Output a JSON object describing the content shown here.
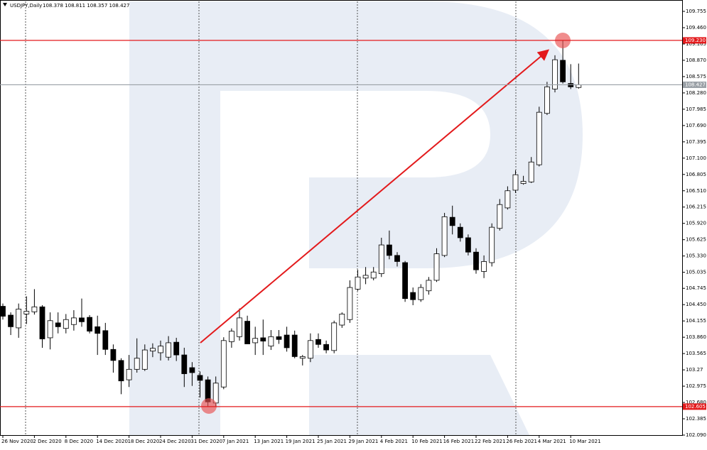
{
  "chart_data": {
    "type": "candlestick",
    "title": "USDJPY,Daily",
    "quote": "108.378 108.811 108.357 108.427",
    "categories": [
      "26 Nov 2020",
      null,
      null,
      null,
      "2 Dec 2020",
      null,
      null,
      null,
      "8 Dec 2020",
      null,
      null,
      null,
      "14 Dec 2020",
      null,
      null,
      null,
      "18 Dec 2020",
      null,
      null,
      null,
      "24 Dec 2020",
      null,
      null,
      null,
      "31 Dec 2020",
      null,
      null,
      null,
      "7 Jan 2021",
      null,
      null,
      null,
      "13 Jan 2021",
      null,
      null,
      null,
      "19 Jan 2021",
      null,
      null,
      null,
      "25 Jan 2021",
      null,
      null,
      null,
      "29 Jan 2021",
      null,
      null,
      null,
      "4 Feb 2021",
      null,
      null,
      null,
      "10 Feb 2021",
      null,
      null,
      null,
      "16 Feb 2021",
      null,
      null,
      null,
      "22 Feb 2021",
      null,
      null,
      null,
      "26 Feb 2021",
      null,
      null,
      null,
      "4 Mar 2021",
      null,
      null,
      null,
      "10 Mar 2021",
      null
    ],
    "open": [
      104.42,
      104.26,
      104.03,
      104.28,
      104.32,
      104.41,
      103.85,
      104.12,
      104.02,
      104.09,
      104.21,
      104.22,
      104.05,
      103.98,
      103.64,
      103.44,
      103.09,
      103.28,
      103.28,
      103.61,
      103.58,
      103.5,
      103.77,
      103.54,
      103.31,
      103.17,
      103.09,
      102.67,
      102.96,
      103.78,
      103.87,
      104.15,
      103.76,
      103.85,
      103.7,
      103.87,
      103.9,
      103.9,
      103.48,
      103.48,
      103.82,
      103.73,
      103.62,
      104.08,
      104.18,
      104.73,
      104.93,
      104.93,
      105.01,
      105.53,
      105.34,
      105.21,
      104.67,
      104.54,
      104.7,
      104.89,
      105.34,
      106.03,
      105.85,
      105.66,
      105.4,
      105.05,
      105.21,
      105.83,
      106.2,
      106.52,
      106.64,
      106.67,
      106.98,
      107.91,
      108.35,
      108.87,
      108.45,
      108.378
    ],
    "high": [
      104.47,
      104.31,
      104.47,
      104.6,
      104.73,
      104.44,
      104.31,
      104.31,
      104.28,
      104.35,
      104.56,
      104.26,
      104.25,
      104.12,
      103.73,
      103.48,
      103.54,
      103.84,
      103.73,
      103.75,
      103.8,
      103.88,
      103.85,
      103.67,
      103.41,
      103.24,
      103.15,
      103.15,
      103.86,
      104.02,
      104.38,
      104.25,
      104.05,
      104.18,
      103.99,
      103.99,
      104.05,
      103.98,
      103.54,
      103.93,
      103.93,
      103.8,
      104.16,
      104.31,
      104.89,
      105.08,
      105.13,
      105.13,
      105.66,
      105.79,
      105.4,
      105.24,
      104.76,
      104.82,
      104.95,
      105.47,
      106.11,
      106.24,
      105.92,
      105.72,
      105.47,
      105.34,
      105.92,
      106.36,
      106.59,
      106.88,
      106.78,
      107.12,
      108.03,
      108.48,
      108.96,
      109.23,
      108.8,
      108.811
    ],
    "low": [
      104.18,
      103.9,
      103.85,
      104.1,
      104.27,
      103.67,
      103.64,
      103.93,
      103.93,
      103.98,
      104.05,
      103.93,
      103.54,
      103.54,
      103.22,
      102.83,
      102.96,
      103.22,
      103.25,
      103.5,
      103.44,
      103.44,
      103.43,
      102.96,
      102.98,
      102.77,
      102.605,
      102.6,
      102.92,
      103.67,
      103.8,
      103.74,
      103.54,
      103.54,
      103.63,
      103.74,
      103.6,
      103.48,
      103.35,
      103.41,
      103.67,
      103.57,
      103.57,
      104.03,
      104.12,
      104.7,
      104.82,
      104.89,
      104.95,
      105.27,
      105.14,
      104.5,
      104.44,
      104.5,
      104.63,
      104.86,
      105.31,
      105.72,
      105.59,
      105.34,
      105.01,
      104.93,
      105.14,
      105.79,
      106.17,
      106.47,
      106.62,
      106.65,
      106.95,
      107.88,
      108.29,
      108.45,
      108.35,
      108.357
    ],
    "close": [
      104.24,
      104.05,
      104.37,
      104.33,
      104.41,
      103.83,
      104.16,
      104.05,
      104.18,
      104.21,
      104.14,
      103.97,
      103.93,
      103.64,
      103.44,
      103.07,
      103.28,
      103.48,
      103.63,
      103.66,
      103.7,
      103.76,
      103.54,
      103.2,
      103.22,
      103.08,
      102.69,
      103.03,
      103.8,
      103.97,
      104.21,
      103.74,
      103.84,
      103.79,
      103.87,
      103.82,
      103.67,
      103.51,
      103.51,
      103.8,
      103.73,
      103.63,
      104.12,
      104.28,
      104.76,
      104.95,
      104.98,
      105.04,
      105.53,
      105.34,
      105.23,
      104.56,
      104.54,
      104.76,
      104.89,
      105.37,
      106.04,
      105.88,
      105.66,
      105.4,
      105.08,
      105.23,
      105.85,
      106.26,
      106.51,
      106.8,
      106.68,
      107.03,
      107.93,
      108.39,
      108.88,
      108.48,
      108.39,
      108.427
    ],
    "ylim": [
      102.09,
      109.935
    ],
    "yticks": [
      {
        "value": 102.09,
        "label": "102.090"
      },
      102.385,
      {
        "value": 102.68,
        "label": "102.680"
      },
      102.975,
      103.27,
      103.565,
      {
        "value": 103.86,
        "label": "103.860"
      },
      104.155,
      {
        "value": 104.45,
        "label": "104.450"
      },
      104.745,
      105.035,
      {
        "value": 105.33,
        "label": "105.330"
      },
      105.625,
      {
        "value": 105.92,
        "label": "105.920"
      },
      106.215,
      {
        "value": 106.51,
        "label": "106.510"
      },
      106.805,
      {
        "value": 107.1,
        "label": "107.100"
      },
      107.395,
      {
        "value": 107.69,
        "label": "107.690"
      },
      107.985,
      {
        "value": 108.28,
        "label": "108.280"
      },
      108.575,
      {
        "value": 108.87,
        "label": "108.870"
      },
      109.165,
      {
        "value": 109.46,
        "label": "109.460"
      },
      109.755
    ],
    "price_lines": [
      {
        "value": 109.23,
        "label": "109.230",
        "color": "#e31a1c"
      },
      {
        "value": 108.427,
        "label": "108.427",
        "color": "#9aa0a6"
      },
      {
        "value": 102.605,
        "label": "102.605",
        "color": "#e31a1c"
      }
    ],
    "up_color": "#ffffff",
    "down_color": "#000000"
  }
}
